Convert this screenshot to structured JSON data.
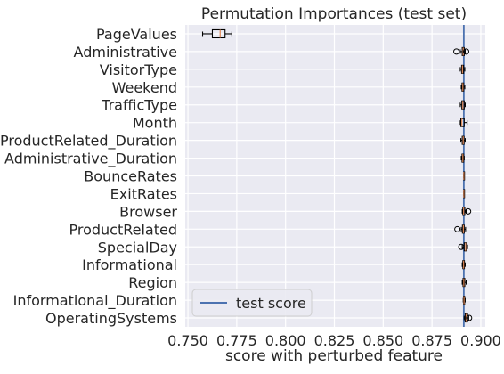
{
  "chart_data": {
    "type": "box",
    "title": "Permutation Importances (test set)",
    "xlabel": "score with perturbed feature",
    "ylabel": "",
    "xlim": [
      0.75,
      0.9
    ],
    "xticks": [
      "0.750",
      "0.775",
      "0.800",
      "0.825",
      "0.850",
      "0.875",
      "0.900"
    ],
    "xtick_values": [
      0.75,
      0.775,
      0.8,
      0.825,
      0.85,
      0.875,
      0.9
    ],
    "grid": true,
    "background": "#eaeaf2",
    "legend": {
      "placement": "lower-left",
      "entries": [
        "test score"
      ]
    },
    "reference_line": {
      "name": "test score",
      "value": 0.8913,
      "color": "#4c72b0"
    },
    "median_color": "#dd8452",
    "features": [
      {
        "label": "PageValues",
        "whislo": 0.7575,
        "q1": 0.7625,
        "med": 0.7665,
        "q3": 0.769,
        "whishi": 0.7725,
        "fliers": []
      },
      {
        "label": "Administrative",
        "whislo": 0.8895,
        "q1": 0.8905,
        "med": 0.891,
        "q3": 0.8915,
        "whishi": 0.892,
        "fliers": [
          0.8875,
          0.8925
        ]
      },
      {
        "label": "VisitorType",
        "whislo": 0.8895,
        "q1": 0.8902,
        "med": 0.8906,
        "q3": 0.8912,
        "whishi": 0.8918,
        "fliers": []
      },
      {
        "label": "Weekend",
        "whislo": 0.89,
        "q1": 0.8904,
        "med": 0.8908,
        "q3": 0.8912,
        "whishi": 0.8918,
        "fliers": []
      },
      {
        "label": "TrafficType",
        "whislo": 0.8895,
        "q1": 0.8903,
        "med": 0.8908,
        "q3": 0.8915,
        "whishi": 0.892,
        "fliers": []
      },
      {
        "label": "Month",
        "whislo": 0.8895,
        "q1": 0.8898,
        "med": 0.8903,
        "q3": 0.8915,
        "whishi": 0.893,
        "fliers": []
      },
      {
        "label": "ProductRelated_Duration",
        "whislo": 0.8898,
        "q1": 0.8905,
        "med": 0.891,
        "q3": 0.8914,
        "whishi": 0.892,
        "fliers": []
      },
      {
        "label": "Administrative_Duration",
        "whislo": 0.89,
        "q1": 0.8904,
        "med": 0.8908,
        "q3": 0.8912,
        "whishi": 0.8915,
        "fliers": []
      },
      {
        "label": "BounceRates",
        "whislo": 0.8913,
        "q1": 0.8913,
        "med": 0.8913,
        "q3": 0.8913,
        "whishi": 0.8913,
        "fliers": []
      },
      {
        "label": "ExitRates",
        "whislo": 0.8913,
        "q1": 0.8913,
        "med": 0.8913,
        "q3": 0.8913,
        "whishi": 0.8913,
        "fliers": []
      },
      {
        "label": "Browser",
        "whislo": 0.8905,
        "q1": 0.8908,
        "med": 0.8912,
        "q3": 0.8918,
        "whishi": 0.8925,
        "fliers": [
          0.8935
        ]
      },
      {
        "label": "ProductRelated",
        "whislo": 0.89,
        "q1": 0.8906,
        "med": 0.8911,
        "q3": 0.8915,
        "whishi": 0.8922,
        "fliers": [
          0.888
        ]
      },
      {
        "label": "SpecialDay",
        "whislo": 0.8905,
        "q1": 0.8915,
        "med": 0.8922,
        "q3": 0.8927,
        "whishi": 0.8932,
        "fliers": [
          0.89
        ]
      },
      {
        "label": "Informational",
        "whislo": 0.8905,
        "q1": 0.8908,
        "med": 0.8912,
        "q3": 0.8916,
        "whishi": 0.892,
        "fliers": []
      },
      {
        "label": "Region",
        "whislo": 0.8905,
        "q1": 0.8909,
        "med": 0.8913,
        "q3": 0.8918,
        "whishi": 0.8925,
        "fliers": []
      },
      {
        "label": "Informational_Duration",
        "whislo": 0.891,
        "q1": 0.8912,
        "med": 0.8914,
        "q3": 0.8917,
        "whishi": 0.892,
        "fliers": []
      },
      {
        "label": "OperatingSystems",
        "whislo": 0.8915,
        "q1": 0.892,
        "med": 0.8925,
        "q3": 0.8932,
        "whishi": 0.8938,
        "fliers": [
          0.894
        ]
      }
    ]
  }
}
